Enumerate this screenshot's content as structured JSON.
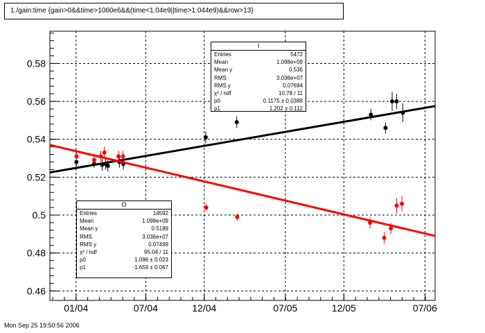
{
  "title": "1./gain:time {gain>0&&time>1060e6&&(time<1.04e9||time>1.044e9)&&row>13}",
  "footer": "Mon Sep 25 19:50:56 2006",
  "stats_black": {
    "name": "I",
    "rows": [
      {
        "label": "Entries",
        "value": "5472"
      },
      {
        "label": "Mean",
        "value": "1.098e+09"
      },
      {
        "label": "Mean y",
        "value": "0.536"
      },
      {
        "label": "RMS",
        "value": "3.036e+07"
      },
      {
        "label": "RMS y",
        "value": "0.07694"
      },
      {
        "label": "χ² / ndf",
        "value": "10.78 / 11"
      },
      {
        "label": "p0",
        "value": "0.1175 ± 0.0388"
      },
      {
        "label": "p1",
        "value": "1.202 ± 0.112"
      }
    ]
  },
  "stats_red": {
    "name": "O",
    "rows": [
      {
        "label": "Entries",
        "value": "14592"
      },
      {
        "label": "Mean",
        "value": "1.098e+09"
      },
      {
        "label": "Mean y",
        "value": "0.5189"
      },
      {
        "label": "RMS",
        "value": "3.036e+07"
      },
      {
        "label": "RMS y",
        "value": "0.07499"
      },
      {
        "label": "χ² / ndf",
        "value": "95.04 / 11"
      },
      {
        "label": "p0",
        "value": "1.096 ± 0.023"
      },
      {
        "label": "p1",
        "value": "-1.659 ± 0.067"
      }
    ]
  },
  "chart_data": {
    "type": "scatter",
    "xlim": [
      1067000000,
      1154000000
    ],
    "ylim": [
      0.455,
      0.597
    ],
    "xticks": [
      {
        "label": "01/04",
        "value": 1072915200
      },
      {
        "label": "07/04",
        "value": 1088640000
      },
      {
        "label": "12/04",
        "value": 1101859200
      },
      {
        "label": "07/05",
        "value": 1120176000
      },
      {
        "label": "12/05",
        "value": 1133395200
      },
      {
        "label": "07/06",
        "value": 1151712000
      }
    ],
    "yticks": [
      0.46,
      0.48,
      0.5,
      0.52,
      0.54,
      0.56,
      0.58
    ],
    "ytick_labels": [
      "0.46",
      "0.48",
      "0.5",
      "0.52",
      "0.54",
      "0.56",
      "0.58"
    ],
    "grid": true,
    "series": [
      {
        "color": "#000000",
        "points": [
          {
            "x": 1073000000,
            "y": 0.528,
            "err": 0.002
          },
          {
            "x": 1077000000,
            "y": 0.527,
            "err": 0.002
          },
          {
            "x": 1078800000,
            "y": 0.5265,
            "err": 0.003
          },
          {
            "x": 1079600000,
            "y": 0.527,
            "err": 0.003
          },
          {
            "x": 1080100000,
            "y": 0.526,
            "err": 0.003
          },
          {
            "x": 1082700000,
            "y": 0.528,
            "err": 0.003
          },
          {
            "x": 1083600000,
            "y": 0.527,
            "err": 0.003
          },
          {
            "x": 1102200000,
            "y": 0.541,
            "err": 0.003
          },
          {
            "x": 1109200000,
            "y": 0.549,
            "err": 0.003
          },
          {
            "x": 1139500000,
            "y": 0.553,
            "err": 0.003
          },
          {
            "x": 1142800000,
            "y": 0.546,
            "err": 0.003
          },
          {
            "x": 1144300000,
            "y": 0.56,
            "err": 0.005
          },
          {
            "x": 1145300000,
            "y": 0.56,
            "err": 0.004
          },
          {
            "x": 1146700000,
            "y": 0.554,
            "err": 0.005
          }
        ],
        "fit": {
          "x": [
            1067000000,
            1154000000
          ],
          "y": [
            0.5225,
            0.5575
          ]
        }
      },
      {
        "color": "#ff0000",
        "points": [
          {
            "x": 1073000000,
            "y": 0.531,
            "err": 0.002
          },
          {
            "x": 1077000000,
            "y": 0.529,
            "err": 0.002
          },
          {
            "x": 1078500000,
            "y": 0.531,
            "err": 0.003
          },
          {
            "x": 1079300000,
            "y": 0.533,
            "err": 0.003
          },
          {
            "x": 1082500000,
            "y": 0.531,
            "err": 0.003
          },
          {
            "x": 1083500000,
            "y": 0.531,
            "err": 0.003
          },
          {
            "x": 1102300000,
            "y": 0.504,
            "err": 0.002
          },
          {
            "x": 1109300000,
            "y": 0.499,
            "err": 0.002
          },
          {
            "x": 1139300000,
            "y": 0.496,
            "err": 0.003
          },
          {
            "x": 1142500000,
            "y": 0.488,
            "err": 0.003
          },
          {
            "x": 1144000000,
            "y": 0.493,
            "err": 0.003
          },
          {
            "x": 1145300000,
            "y": 0.505,
            "err": 0.004
          },
          {
            "x": 1146500000,
            "y": 0.506,
            "err": 0.004
          }
        ],
        "fit": {
          "x": [
            1067000000,
            1154000000
          ],
          "y": [
            0.537,
            0.489
          ]
        }
      }
    ]
  }
}
